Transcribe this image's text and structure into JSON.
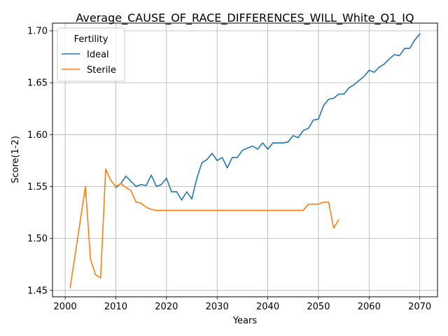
{
  "chart_data": {
    "type": "line",
    "title": "Average_CAUSE_OF_RACE_DIFFERENCES_WILL_White_Q1_IQ",
    "xlabel": "Years",
    "ylabel": "Score(1-2)",
    "xlim": [
      1997.5,
      2073.5
    ],
    "ylim": [
      1.4438,
      1.7074
    ],
    "xticks": [
      2000,
      2010,
      2020,
      2030,
      2040,
      2050,
      2060,
      2070
    ],
    "yticks": [
      1.45,
      1.5,
      1.55,
      1.6,
      1.65,
      1.7
    ],
    "ytick_labels": [
      "1.45",
      "1.50",
      "1.55",
      "1.60",
      "1.65",
      "1.70"
    ],
    "grid": true,
    "legend": {
      "title": "Fertility",
      "placement": "top-left"
    },
    "series": [
      {
        "name": "Ideal",
        "color": "#1f77b4",
        "x": [
          2010,
          2011,
          2012,
          2013,
          2014,
          2015,
          2016,
          2017,
          2018,
          2019,
          2020,
          2021,
          2022,
          2023,
          2024,
          2025,
          2026,
          2027,
          2028,
          2029,
          2030,
          2031,
          2032,
          2033,
          2034,
          2035,
          2036,
          2037,
          2038,
          2039,
          2040,
          2041,
          2042,
          2043,
          2044,
          2045,
          2046,
          2047,
          2048,
          2049,
          2050,
          2051,
          2052,
          2053,
          2054,
          2055,
          2056,
          2057,
          2058,
          2059,
          2060,
          2061,
          2062,
          2063,
          2064,
          2065,
          2066,
          2067,
          2068,
          2069,
          2070
        ],
        "y": [
          1.549,
          1.553,
          1.56,
          1.555,
          1.55,
          1.552,
          1.551,
          1.561,
          1.55,
          1.552,
          1.558,
          1.545,
          1.545,
          1.537,
          1.545,
          1.538,
          1.558,
          1.573,
          1.576,
          1.582,
          1.575,
          1.578,
          1.568,
          1.578,
          1.578,
          1.585,
          1.587,
          1.589,
          1.586,
          1.592,
          1.586,
          1.592,
          1.592,
          1.592,
          1.593,
          1.599,
          1.597,
          1.604,
          1.606,
          1.614,
          1.615,
          1.628,
          1.634,
          1.635,
          1.639,
          1.639,
          1.645,
          1.648,
          1.652,
          1.656,
          1.662,
          1.66,
          1.665,
          1.668,
          1.673,
          1.677,
          1.676,
          1.683,
          1.683,
          1.691,
          1.697
        ]
      },
      {
        "name": "Sterile",
        "color": "#ff7f0e",
        "x": [
          2001,
          2004,
          2005,
          2006,
          2007,
          2008,
          2009,
          2010,
          2011,
          2012,
          2013,
          2014,
          2015,
          2016,
          2017,
          2018,
          2019,
          2020,
          2021,
          2022,
          2023,
          2024,
          2025,
          2026,
          2027,
          2028,
          2029,
          2030,
          2031,
          2032,
          2033,
          2034,
          2035,
          2036,
          2037,
          2038,
          2039,
          2040,
          2041,
          2042,
          2043,
          2044,
          2045,
          2046,
          2047,
          2048,
          2049,
          2050,
          2051,
          2052,
          2053,
          2054
        ],
        "y": [
          1.453,
          1.55,
          1.48,
          1.465,
          1.462,
          1.567,
          1.556,
          1.55,
          1.553,
          1.549,
          1.546,
          1.535,
          1.534,
          1.53,
          1.528,
          1.527,
          1.527,
          1.527,
          1.527,
          1.527,
          1.527,
          1.527,
          1.527,
          1.527,
          1.527,
          1.527,
          1.527,
          1.527,
          1.527,
          1.527,
          1.527,
          1.527,
          1.527,
          1.527,
          1.527,
          1.527,
          1.527,
          1.527,
          1.527,
          1.527,
          1.527,
          1.527,
          1.527,
          1.527,
          1.527,
          1.533,
          1.533,
          1.533,
          1.535,
          1.535,
          1.51,
          1.518
        ]
      }
    ]
  }
}
